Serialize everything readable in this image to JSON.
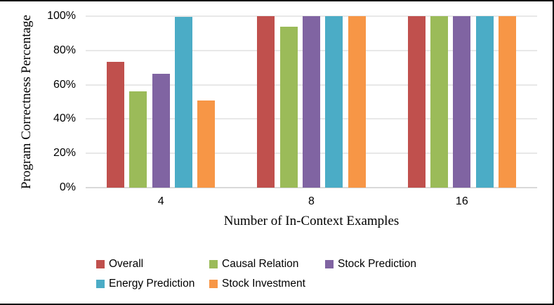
{
  "chart_data": {
    "type": "bar",
    "title": "",
    "xlabel": "Number of In-Context Examples",
    "ylabel": "Program Correctness Percentage",
    "categories": [
      "4",
      "8",
      "16"
    ],
    "series": [
      {
        "name": "Overall",
        "color": "#C0504D",
        "values": [
          73.5,
          100,
          100
        ]
      },
      {
        "name": "Causal Relation",
        "color": "#9BBB59",
        "values": [
          56,
          94,
          100
        ]
      },
      {
        "name": "Stock Prediction",
        "color": "#8064A2",
        "values": [
          66.5,
          100,
          100
        ]
      },
      {
        "name": "Energy Prediction",
        "color": "#4BACC6",
        "values": [
          99.5,
          100,
          100
        ]
      },
      {
        "name": "Stock Investment",
        "color": "#F79646",
        "values": [
          51,
          100,
          100
        ]
      }
    ],
    "y_ticks": [
      {
        "label": "0%",
        "value": 0
      },
      {
        "label": "20%",
        "value": 20
      },
      {
        "label": "40%",
        "value": 40
      },
      {
        "label": "60%",
        "value": 60
      },
      {
        "label": "80%",
        "value": 80
      },
      {
        "label": "100%",
        "value": 100
      }
    ],
    "ylim": [
      0,
      100
    ],
    "grid": true,
    "legend_position": "bottom"
  },
  "colors": {
    "background": "#FFFFFF",
    "grid_line": "#E8E8E8",
    "axis_line": "#D9D9D9",
    "text": "#000000",
    "frame_border": "#000000"
  }
}
